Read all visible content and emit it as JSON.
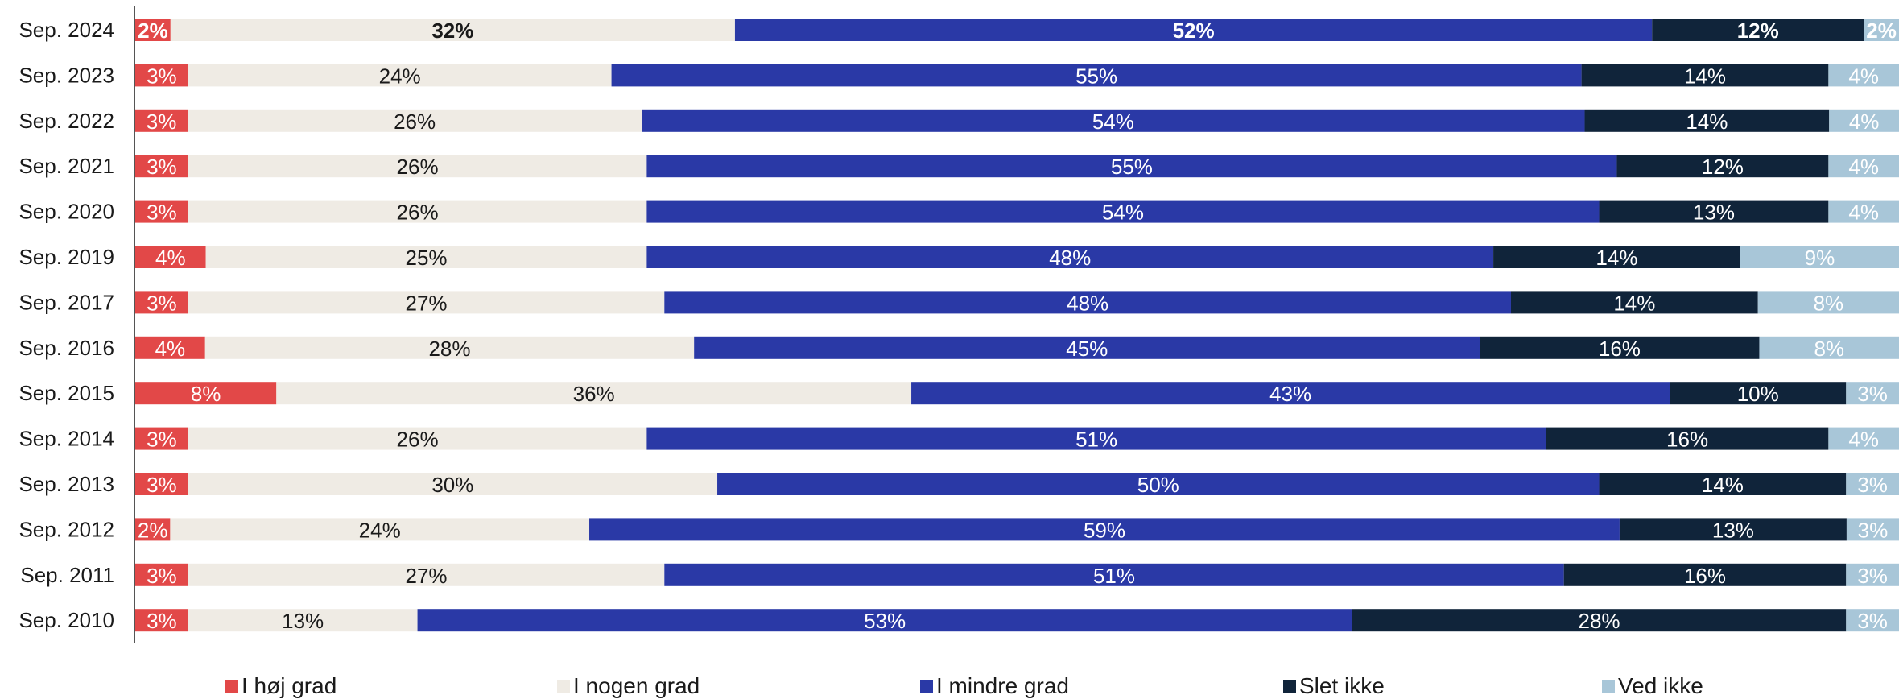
{
  "chart_data": {
    "type": "bar",
    "orientation": "horizontal",
    "stacked": true,
    "categories": [
      "Sep. 2024",
      "Sep. 2023",
      "Sep. 2022",
      "Sep. 2021",
      "Sep. 2020",
      "Sep. 2019",
      "Sep. 2017",
      "Sep. 2016",
      "Sep. 2015",
      "Sep. 2014",
      "Sep. 2013",
      "Sep. 2012",
      "Sep. 2011",
      "Sep. 2010"
    ],
    "series": [
      {
        "name": "I høj grad",
        "color": "#e24848",
        "label_color": "#ffffff",
        "values": [
          2,
          3,
          3,
          3,
          3,
          4,
          3,
          4,
          8,
          3,
          3,
          2,
          3,
          3
        ],
        "labels": [
          "2%",
          "3%",
          "3%",
          "3%",
          "3%",
          "4%",
          "3%",
          "4%",
          "8%",
          "3%",
          "3%",
          "2%",
          "3%",
          "3%"
        ]
      },
      {
        "name": "I nogen grad",
        "color": "#efebe4",
        "label_color": "#1a1a1a",
        "values": [
          32,
          24,
          26,
          26,
          26,
          25,
          27,
          28,
          36,
          26,
          30,
          24,
          27,
          13
        ],
        "labels": [
          "32%",
          "24%",
          "26%",
          "26%",
          "26%",
          "25%",
          "27%",
          "28%",
          "36%",
          "26%",
          "30%",
          "24%",
          "27%",
          "13%"
        ]
      },
      {
        "name": "I mindre grad",
        "color": "#2a39a6",
        "label_color": "#ffffff",
        "values": [
          52,
          55,
          54,
          55,
          54,
          48,
          48,
          45,
          43,
          51,
          50,
          59,
          51,
          53
        ],
        "labels": [
          "52%",
          "55%",
          "54%",
          "55%",
          "54%",
          "48%",
          "48%",
          "45%",
          "43%",
          "51%",
          "50%",
          "59%",
          "51%",
          "53%"
        ]
      },
      {
        "name": "Slet ikke",
        "color": "#10243a",
        "label_color": "#ffffff",
        "values": [
          12,
          14,
          14,
          12,
          13,
          14,
          14,
          16,
          10,
          16,
          14,
          13,
          16,
          28
        ],
        "labels": [
          "12%",
          "14%",
          "14%",
          "12%",
          "13%",
          "14%",
          "14%",
          "16%",
          "10%",
          "16%",
          "14%",
          "13%",
          "16%",
          "28%"
        ]
      },
      {
        "name": "Ved ikke",
        "color": "#a8c6d8",
        "label_color": "#ffffff",
        "values": [
          2,
          4,
          4,
          4,
          4,
          9,
          8,
          8,
          3,
          4,
          3,
          3,
          3,
          3
        ],
        "labels": [
          "2%",
          "4%",
          "4%",
          "4%",
          "4%",
          "9%",
          "8%",
          "8%",
          "3%",
          "4%",
          "3%",
          "3%",
          "3%",
          "3%"
        ]
      }
    ],
    "bold_rows": [
      "Sep. 2024"
    ],
    "xlim": [
      0,
      100
    ],
    "grid": false,
    "legend_position": "bottom"
  }
}
